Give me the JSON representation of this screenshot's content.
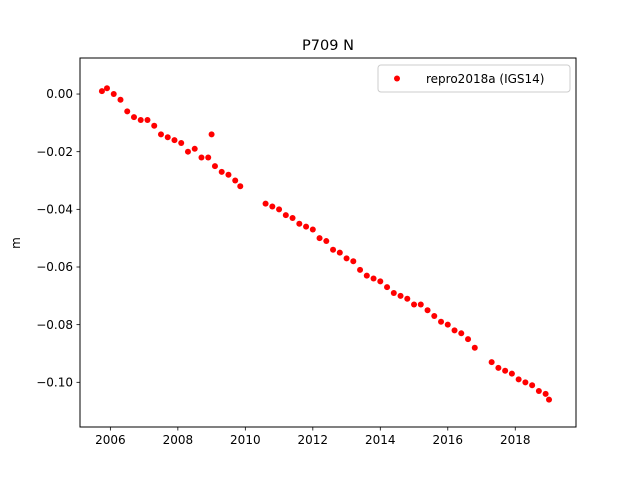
{
  "chart_data": {
    "type": "scatter",
    "title": "P709 N",
    "xlabel": "",
    "ylabel": "m",
    "xlim": [
      2005.1,
      2019.8
    ],
    "ylim": [
      -0.1155,
      0.0125
    ],
    "xticks": [
      2006,
      2008,
      2010,
      2012,
      2014,
      2016,
      2018
    ],
    "xtick_labels": [
      "2006",
      "2008",
      "2010",
      "2012",
      "2014",
      "2016",
      "2018"
    ],
    "yticks": [
      0.0,
      -0.02,
      -0.04,
      -0.06,
      -0.08,
      -0.1
    ],
    "ytick_labels": [
      "0.00",
      "−0.02",
      "−0.04",
      "−0.06",
      "−0.08",
      "−0.10"
    ],
    "grid": false,
    "legend_position": "top-right",
    "series": [
      {
        "name": "repro2018a (IGS14)",
        "color": "#ff0000",
        "marker": "circle",
        "x": [
          2005.75,
          2005.9,
          2006.1,
          2006.3,
          2006.5,
          2006.7,
          2006.9,
          2007.1,
          2007.3,
          2007.5,
          2007.7,
          2007.9,
          2008.1,
          2008.3,
          2008.5,
          2008.7,
          2008.9,
          2009.0,
          2009.1,
          2009.3,
          2009.5,
          2009.7,
          2009.85,
          2010.6,
          2010.8,
          2011.0,
          2011.2,
          2011.4,
          2011.6,
          2011.8,
          2012.0,
          2012.2,
          2012.4,
          2012.6,
          2012.8,
          2013.0,
          2013.2,
          2013.4,
          2013.6,
          2013.8,
          2014.0,
          2014.2,
          2014.4,
          2014.6,
          2014.8,
          2015.0,
          2015.2,
          2015.4,
          2015.6,
          2015.8,
          2016.0,
          2016.2,
          2016.4,
          2016.6,
          2016.8,
          2017.3,
          2017.5,
          2017.7,
          2017.9,
          2018.1,
          2018.3,
          2018.5,
          2018.7,
          2018.9,
          2019.0
        ],
        "y": [
          0.001,
          0.002,
          0.0,
          -0.002,
          -0.006,
          -0.008,
          -0.009,
          -0.009,
          -0.011,
          -0.014,
          -0.015,
          -0.016,
          -0.017,
          -0.02,
          -0.019,
          -0.022,
          -0.022,
          -0.014,
          -0.025,
          -0.027,
          -0.028,
          -0.03,
          -0.032,
          -0.038,
          -0.039,
          -0.04,
          -0.042,
          -0.043,
          -0.045,
          -0.046,
          -0.047,
          -0.05,
          -0.051,
          -0.054,
          -0.055,
          -0.057,
          -0.058,
          -0.061,
          -0.063,
          -0.064,
          -0.065,
          -0.067,
          -0.069,
          -0.07,
          -0.071,
          -0.073,
          -0.073,
          -0.075,
          -0.077,
          -0.079,
          -0.08,
          -0.082,
          -0.083,
          -0.085,
          -0.088,
          -0.093,
          -0.095,
          -0.096,
          -0.097,
          -0.099,
          -0.1,
          -0.101,
          -0.103,
          -0.104,
          -0.106
        ]
      }
    ]
  }
}
